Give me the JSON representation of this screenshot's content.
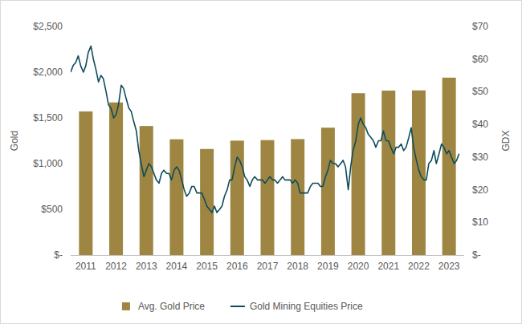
{
  "chart_data": {
    "type": "bar",
    "xlim": [
      2011,
      2024
    ],
    "xticks": [
      {
        "value": 2011.5,
        "label": "2011"
      },
      {
        "value": 2012.5,
        "label": "2012"
      },
      {
        "value": 2013.5,
        "label": "2013"
      },
      {
        "value": 2014.5,
        "label": "2014"
      },
      {
        "value": 2015.5,
        "label": "2015"
      },
      {
        "value": 2016.5,
        "label": "2016"
      },
      {
        "value": 2017.5,
        "label": "2017"
      },
      {
        "value": 2018.5,
        "label": "2018"
      },
      {
        "value": 2019.5,
        "label": "2019"
      },
      {
        "value": 2020.5,
        "label": "2020"
      },
      {
        "value": 2021.5,
        "label": "2021"
      },
      {
        "value": 2022.5,
        "label": "2022"
      },
      {
        "value": 2023.5,
        "label": "2023"
      }
    ],
    "ylim": [
      0,
      2500
    ],
    "yticks": [
      {
        "value": 0,
        "label": "$-"
      },
      {
        "value": 500,
        "label": "$500"
      },
      {
        "value": 1000,
        "label": "$1,000"
      },
      {
        "value": 1500,
        "label": "$1,500"
      },
      {
        "value": 2000,
        "label": "$2,000"
      },
      {
        "value": 2500,
        "label": "$2,500"
      }
    ],
    "y2lim": [
      0,
      70
    ],
    "y2ticks": [
      {
        "value": 0,
        "label": "$-"
      },
      {
        "value": 10,
        "label": "$10"
      },
      {
        "value": 20,
        "label": "$20"
      },
      {
        "value": 30,
        "label": "$30"
      },
      {
        "value": 40,
        "label": "$40"
      },
      {
        "value": 50,
        "label": "$50"
      },
      {
        "value": 60,
        "label": "$60"
      },
      {
        "value": 70,
        "label": "$70"
      }
    ],
    "ylabel": "Gold",
    "y2label": "GDX",
    "legend": "bottom",
    "grid": false,
    "series": [
      {
        "name": "Avg. Gold Price",
        "type": "bar",
        "color": "#9e8642",
        "x": [
          2011.5,
          2012.5,
          2013.5,
          2014.5,
          2015.5,
          2016.5,
          2017.5,
          2018.5,
          2019.5,
          2020.5,
          2021.5,
          2022.5,
          2023.5
        ],
        "values": [
          1571,
          1669,
          1411,
          1266,
          1160,
          1251,
          1257,
          1268,
          1393,
          1770,
          1799,
          1801,
          1940
        ]
      },
      {
        "name": "Gold Mining Equities Price",
        "type": "line",
        "axis": "y2",
        "color": "#0f4c5c",
        "x": [
          2011.0,
          2011.08,
          2011.17,
          2011.25,
          2011.33,
          2011.42,
          2011.5,
          2011.58,
          2011.67,
          2011.75,
          2011.83,
          2011.92,
          2012.0,
          2012.08,
          2012.17,
          2012.25,
          2012.33,
          2012.42,
          2012.5,
          2012.58,
          2012.67,
          2012.75,
          2012.83,
          2012.92,
          2013.0,
          2013.08,
          2013.17,
          2013.25,
          2013.33,
          2013.42,
          2013.5,
          2013.58,
          2013.67,
          2013.75,
          2013.83,
          2013.92,
          2014.0,
          2014.08,
          2014.17,
          2014.25,
          2014.33,
          2014.42,
          2014.5,
          2014.58,
          2014.67,
          2014.75,
          2014.83,
          2014.92,
          2015.0,
          2015.08,
          2015.17,
          2015.25,
          2015.33,
          2015.42,
          2015.5,
          2015.58,
          2015.67,
          2015.75,
          2015.83,
          2015.92,
          2016.0,
          2016.08,
          2016.17,
          2016.25,
          2016.33,
          2016.42,
          2016.5,
          2016.58,
          2016.67,
          2016.75,
          2016.83,
          2016.92,
          2017.0,
          2017.08,
          2017.17,
          2017.25,
          2017.33,
          2017.42,
          2017.5,
          2017.58,
          2017.67,
          2017.75,
          2017.83,
          2017.92,
          2018.0,
          2018.08,
          2018.17,
          2018.25,
          2018.33,
          2018.42,
          2018.5,
          2018.58,
          2018.67,
          2018.75,
          2018.83,
          2018.92,
          2019.0,
          2019.08,
          2019.17,
          2019.25,
          2019.33,
          2019.42,
          2019.5,
          2019.58,
          2019.67,
          2019.75,
          2019.83,
          2019.92,
          2020.0,
          2020.08,
          2020.17,
          2020.25,
          2020.33,
          2020.42,
          2020.5,
          2020.58,
          2020.67,
          2020.75,
          2020.83,
          2020.92,
          2021.0,
          2021.08,
          2021.17,
          2021.25,
          2021.33,
          2021.42,
          2021.5,
          2021.58,
          2021.67,
          2021.75,
          2021.83,
          2021.92,
          2022.0,
          2022.08,
          2022.17,
          2022.25,
          2022.33,
          2022.42,
          2022.5,
          2022.58,
          2022.67,
          2022.75,
          2022.83,
          2022.92,
          2023.0,
          2023.08,
          2023.17,
          2023.25,
          2023.33,
          2023.42,
          2023.5,
          2023.58,
          2023.67,
          2023.75,
          2023.83
        ],
        "values": [
          56,
          58,
          59,
          61,
          58,
          56,
          58,
          62,
          64,
          60,
          57,
          53,
          55,
          54,
          50,
          46,
          45,
          42,
          43,
          46,
          52,
          51,
          48,
          45,
          44,
          41,
          38,
          32,
          28,
          24,
          26,
          28,
          27,
          25,
          23,
          22,
          25,
          26,
          25,
          25,
          23,
          26,
          27,
          26,
          23,
          20,
          18,
          19,
          21,
          21,
          19,
          19,
          19,
          17,
          15,
          14,
          13,
          15,
          13,
          14,
          15,
          18,
          20,
          23,
          23,
          27,
          30,
          29,
          27,
          24,
          23,
          21,
          23,
          24,
          23,
          23,
          23,
          22,
          23,
          24,
          23,
          23,
          22,
          23,
          24,
          23,
          23,
          23,
          22,
          23,
          22,
          19,
          19,
          19,
          19,
          21,
          22,
          22,
          22,
          21,
          21,
          24,
          26,
          29,
          28,
          28,
          27,
          28,
          29,
          27,
          20,
          27,
          32,
          35,
          40,
          42,
          40,
          39,
          37,
          36,
          35,
          33,
          35,
          35,
          38,
          35,
          35,
          33,
          31,
          33,
          33,
          34,
          32,
          33,
          36,
          39,
          33,
          29,
          26,
          24,
          23,
          23,
          28,
          29,
          32,
          28,
          31,
          34,
          33,
          31,
          32,
          30,
          28,
          29,
          31
        ]
      }
    ]
  }
}
